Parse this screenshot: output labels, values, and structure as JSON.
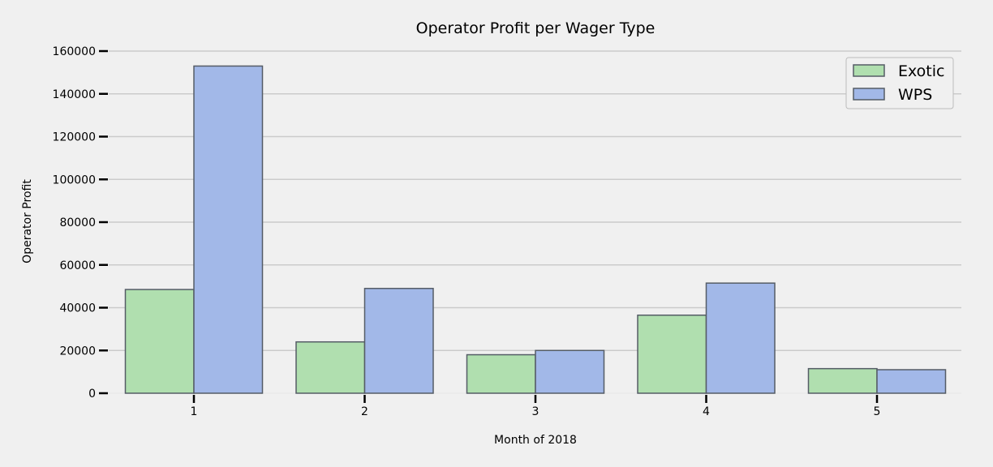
{
  "chart_data": {
    "type": "bar",
    "title": "Operator Profit per Wager Type",
    "xlabel": "Month of 2018",
    "ylabel": "Operator Profit",
    "categories": [
      "1",
      "2",
      "3",
      "4",
      "5"
    ],
    "series": [
      {
        "name": "Exotic",
        "values": [
          48500,
          24000,
          18000,
          36500,
          11500
        ],
        "color": "#b0dfaf"
      },
      {
        "name": "WPS",
        "values": [
          153000,
          49000,
          20000,
          51500,
          11000
        ],
        "color": "#a2b8e8"
      }
    ],
    "ylim": [
      0,
      160000
    ],
    "yticks": [
      "0",
      "20000",
      "40000",
      "60000",
      "80000",
      "100000",
      "120000",
      "140000",
      "160000"
    ],
    "grid": "horizontal",
    "legend_position": "top-right",
    "background": "#f0f0f0",
    "gridline_color": "#cbcbcb",
    "bar_edge_color": "#555c66"
  }
}
